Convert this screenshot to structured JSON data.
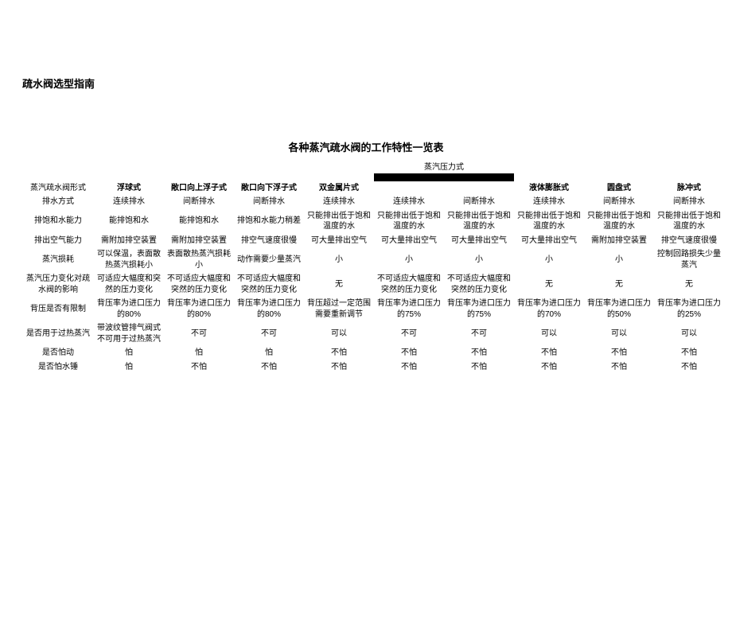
{
  "page_title": "疏水阀选型指南",
  "table_title": "各种蒸汽疏水阀的工作特性一览表",
  "group_header": "蒸汽压力式",
  "row_header_label": "蒸汽疏水阀形式",
  "column_headers": [
    "浮球式",
    "敞口向上浮子式",
    "敞口向下浮子式",
    "双金属片式",
    "",
    "",
    "液体膨胀式",
    "圆盘式",
    "脉冲式"
  ],
  "sub_headers_group": [
    "",
    ""
  ],
  "rows": [
    {
      "label": "排水方式",
      "cells": [
        "连续排水",
        "间断排水",
        "间断排水",
        "连续排水",
        "连续排水",
        "间断排水",
        "连续排水",
        "间断排水",
        "间断排水"
      ]
    },
    {
      "label": "排饱和水能力",
      "cells": [
        "能排饱和水",
        "能排饱和水",
        "排饱和水能力稍差",
        "只能排出低于饱和温度的水",
        "只能排出低于饱和温度的水",
        "只能排出低于饱和温度的水",
        "只能排出低于饱和温度的水",
        "只能排出低于饱和温度的水",
        "只能排出低于饱和温度的水"
      ]
    },
    {
      "label": "排出空气能力",
      "cells": [
        "需附加排空装置",
        "需附加排空装置",
        "排空气速度很慢",
        "可大量排出空气",
        "可大量排出空气",
        "可大量排出空气",
        "可大量排出空气",
        "需附加排空装置",
        "排空气速度很慢"
      ]
    },
    {
      "label": "蒸汽损耗",
      "cells": [
        "可以保温，表面散热蒸汽损耗小",
        "表面散热蒸汽损耗小",
        "动作需要少量蒸汽",
        "小",
        "小",
        "小",
        "小",
        "小",
        "控制回路损失少量蒸汽"
      ]
    },
    {
      "label": "蒸汽压力变化对疏水阀的影响",
      "cells": [
        "可适应大幅度和突然的压力变化",
        "不可适应大幅度和突然的压力变化",
        "不可适应大幅度和突然的压力变化",
        "无",
        "不可适应大幅度和突然的压力变化",
        "不可适应大幅度和突然的压力变化",
        "无",
        "无",
        "无"
      ]
    },
    {
      "label": "背压是否有限制",
      "cells": [
        "背压率为进口压力的80%",
        "背压率为进口压力的80%",
        "背压率为进口压力的80%",
        "背压超过一定范围需要重新调节",
        "背压率为进口压力的75%",
        "背压率为进口压力的75%",
        "背压率为进口压力的70%",
        "背压率为进口压力的50%",
        "背压率为进口压力的25%"
      ]
    },
    {
      "label": "是否用于过热蒸汽",
      "cells": [
        "带波纹管排气阀式不可用于过热蒸汽",
        "不可",
        "不可",
        "可以",
        "不可",
        "不可",
        "可以",
        "可以",
        "可以"
      ]
    },
    {
      "label": "是否怕动",
      "cells": [
        "怕",
        "怕",
        "怕",
        "不怕",
        "不怕",
        "不怕",
        "不怕",
        "不怕",
        "不怕"
      ]
    },
    {
      "label": "是否怕水锤",
      "cells": [
        "怕",
        "不怕",
        "不怕",
        "不怕",
        "不怕",
        "不怕",
        "不怕",
        "不怕",
        "不怕"
      ]
    }
  ]
}
